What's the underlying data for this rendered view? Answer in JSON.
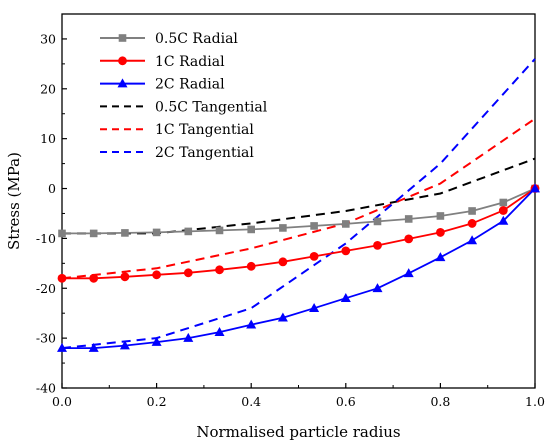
{
  "chart_data": {
    "type": "line",
    "xlabel": "Normalised particle radius",
    "ylabel": "Stress (MPa)",
    "xlim": [
      0.0,
      1.0
    ],
    "ylim": [
      -40,
      35
    ],
    "xticks": [
      "0.0",
      "0.2",
      "0.4",
      "0.6",
      "0.8",
      "1.0"
    ],
    "xtick_values": [
      0.0,
      0.2,
      0.4,
      0.6,
      0.8,
      1.0
    ],
    "yticks": [
      "-40",
      "-30",
      "-20",
      "-10",
      "0",
      "10",
      "20",
      "30"
    ],
    "ytick_values": [
      -40,
      -30,
      -20,
      -10,
      0,
      10,
      20,
      30
    ],
    "grid": false,
    "legend_position": "top-left",
    "series": [
      {
        "name": "0.5C Radial",
        "color": "#808080",
        "dash": "solid",
        "marker": "square",
        "x": [
          0.0,
          0.067,
          0.133,
          0.2,
          0.267,
          0.333,
          0.4,
          0.467,
          0.533,
          0.6,
          0.667,
          0.733,
          0.8,
          0.867,
          0.933,
          1.0
        ],
        "y": [
          -9.0,
          -9.0,
          -8.9,
          -8.8,
          -8.6,
          -8.4,
          -8.2,
          -7.9,
          -7.5,
          -7.1,
          -6.6,
          -6.1,
          -5.5,
          -4.5,
          -2.8,
          0.0
        ]
      },
      {
        "name": "1C Radial",
        "color": "#ff0000",
        "dash": "solid",
        "marker": "circle",
        "x": [
          0.0,
          0.067,
          0.133,
          0.2,
          0.267,
          0.333,
          0.4,
          0.467,
          0.533,
          0.6,
          0.667,
          0.733,
          0.8,
          0.867,
          0.933,
          1.0
        ],
        "y": [
          -18.0,
          -18.0,
          -17.7,
          -17.3,
          -16.9,
          -16.3,
          -15.6,
          -14.7,
          -13.6,
          -12.5,
          -11.4,
          -10.1,
          -8.8,
          -7.0,
          -4.4,
          0.0
        ]
      },
      {
        "name": "2C Radial",
        "color": "#0000ff",
        "dash": "solid",
        "marker": "triangle",
        "x": [
          0.0,
          0.067,
          0.133,
          0.2,
          0.267,
          0.333,
          0.4,
          0.467,
          0.533,
          0.6,
          0.667,
          0.733,
          0.8,
          0.867,
          0.933,
          1.0
        ],
        "y": [
          -32.0,
          -32.0,
          -31.5,
          -30.8,
          -30.0,
          -28.8,
          -27.3,
          -25.9,
          -24.0,
          -22.0,
          -20.0,
          -17.0,
          -13.8,
          -10.4,
          -6.5,
          0.0
        ]
      },
      {
        "name": "0.5C Tangential",
        "color": "#000000",
        "dash": "dashed",
        "marker": "none",
        "x": [
          0.0,
          0.2,
          0.4,
          0.6,
          0.8,
          1.0
        ],
        "y": [
          -9.0,
          -9.0,
          -7.0,
          -4.5,
          -1.0,
          6.0
        ]
      },
      {
        "name": "1C Tangential",
        "color": "#ff0000",
        "dash": "dashed",
        "marker": "none",
        "x": [
          0.0,
          0.2,
          0.4,
          0.6,
          0.8,
          1.0
        ],
        "y": [
          -18.0,
          -16.0,
          -12.0,
          -7.0,
          1.0,
          14.0
        ]
      },
      {
        "name": "2C Tangential",
        "color": "#0000ff",
        "dash": "dashed",
        "marker": "none",
        "x": [
          0.0,
          0.2,
          0.4,
          0.6,
          0.8,
          1.0
        ],
        "y": [
          -32.0,
          -30.0,
          -24.0,
          -11.0,
          5.0,
          26.0
        ]
      }
    ]
  }
}
